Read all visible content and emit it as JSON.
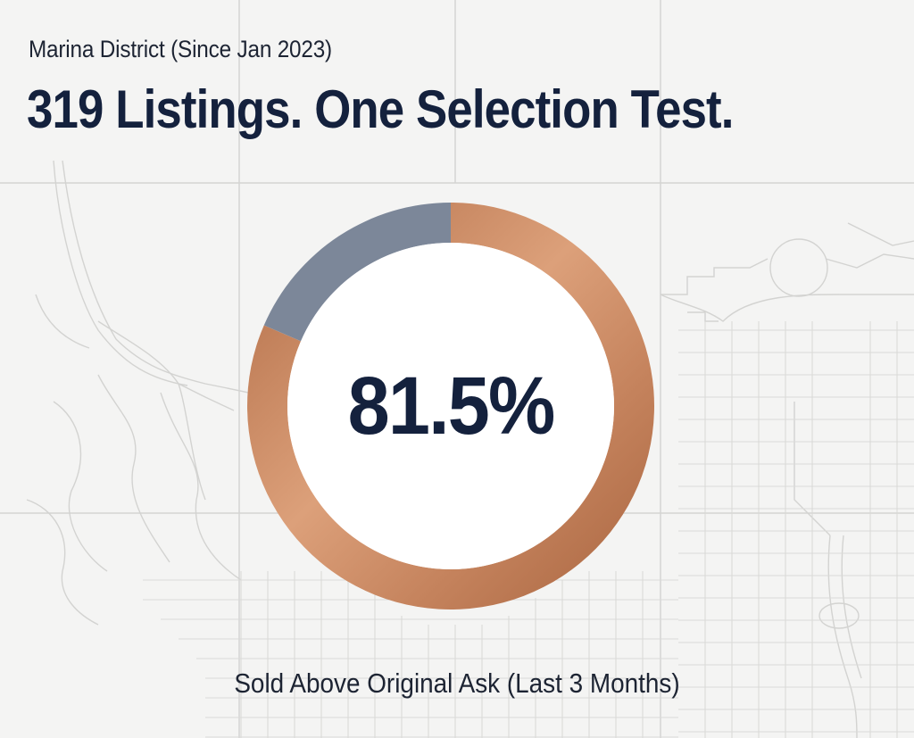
{
  "header": {
    "subtitle": "Marina District (Since Jan 2023)",
    "title": "319 Listings. One Selection Test."
  },
  "chart_data": {
    "type": "pie",
    "variant": "donut",
    "center_label": "81.5%",
    "caption": "Sold Above Original Ask (Last 3 Months)",
    "slices": [
      {
        "value": 81.5
      },
      {
        "value": 18.5
      }
    ]
  },
  "colors": {
    "highlight": "#c98a62",
    "remainder": "#7c8799",
    "text_dark": "#14213d",
    "map_lines": "#d6d6d4"
  }
}
